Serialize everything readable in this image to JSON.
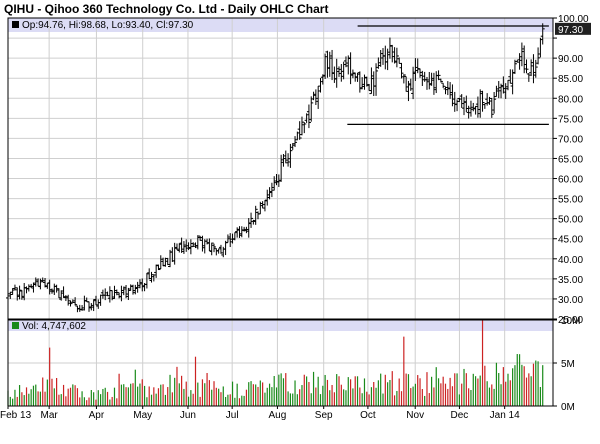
{
  "chart_data": {
    "type": "ohlc",
    "title": "QIHU - Qihoo 360 Technology Co. Ltd - Daily OHLC Chart",
    "legend": {
      "price_text": "Op:94.76, Hi:98.68, Lo:93.40, Cl:97.30",
      "volume_text": "Vol: 4,747,602"
    },
    "last_price_label": "97.30",
    "price_axis": {
      "ylim": [
        25,
        100
      ],
      "ticks": [
        "100.00",
        "95.00",
        "90.00",
        "85.00",
        "80.00",
        "75.00",
        "70.00",
        "65.00",
        "60.00",
        "55.00",
        "50.00",
        "45.00",
        "40.00",
        "35.00",
        "30.00",
        "25.00"
      ],
      "tick_values": [
        100,
        95,
        90,
        85,
        80,
        75,
        70,
        65,
        60,
        55,
        50,
        45,
        40,
        35,
        30,
        25
      ]
    },
    "volume_axis": {
      "ylim": [
        0,
        10
      ],
      "ticks": [
        "10M",
        "5M",
        "0M"
      ],
      "tick_values": [
        10,
        5,
        0
      ]
    },
    "x_axis": {
      "labels": [
        "Feb 13",
        "Mar",
        "Apr",
        "May",
        "Jun",
        "Jul",
        "Aug",
        "Sep",
        "Oct",
        "Nov",
        "Dec",
        "Jan 14"
      ],
      "positions": [
        0,
        4,
        8.6,
        13.1,
        17.5,
        21.8,
        26.2,
        30.7,
        35.0,
        39.6,
        43.9,
        48.3
      ],
      "range": [
        0,
        53
      ]
    },
    "price_path": [
      [
        0,
        30.5
      ],
      [
        2,
        32.5
      ],
      [
        3,
        34
      ],
      [
        4,
        33
      ],
      [
        5,
        31
      ],
      [
        6,
        29
      ],
      [
        7,
        28.5
      ],
      [
        8,
        29
      ],
      [
        9,
        30
      ],
      [
        10,
        31
      ],
      [
        11,
        32
      ],
      [
        12,
        33
      ],
      [
        13,
        34
      ],
      [
        14,
        36
      ],
      [
        15,
        39
      ],
      [
        16,
        41
      ],
      [
        17,
        43
      ],
      [
        18,
        44
      ],
      [
        19,
        44
      ],
      [
        20,
        43
      ],
      [
        21,
        43
      ],
      [
        22,
        46
      ],
      [
        23,
        48
      ],
      [
        24,
        51
      ],
      [
        25,
        55
      ],
      [
        26,
        59
      ],
      [
        27,
        65
      ],
      [
        28,
        71
      ],
      [
        29,
        74
      ],
      [
        30,
        82
      ],
      [
        31,
        90
      ],
      [
        32,
        86
      ],
      [
        33,
        88
      ],
      [
        34,
        85
      ],
      [
        35,
        82
      ],
      [
        36,
        87
      ],
      [
        37,
        93
      ],
      [
        38,
        87
      ],
      [
        39,
        84
      ],
      [
        40,
        88
      ],
      [
        41,
        84
      ],
      [
        42,
        86
      ],
      [
        43,
        82
      ],
      [
        44,
        78
      ],
      [
        45,
        75
      ],
      [
        46,
        80
      ],
      [
        47,
        78
      ],
      [
        48,
        82
      ],
      [
        49,
        85
      ],
      [
        50,
        90
      ],
      [
        51,
        86
      ],
      [
        52,
        97.3
      ]
    ],
    "volume_path": [
      [
        0,
        1.5
      ],
      [
        4,
        2.5
      ],
      [
        8,
        1.2
      ],
      [
        13,
        2.0
      ],
      [
        17,
        2.5
      ],
      [
        21,
        1.8
      ],
      [
        26,
        2.5
      ],
      [
        30,
        2.8
      ],
      [
        35,
        2.6
      ],
      [
        39,
        2.5
      ],
      [
        43,
        2.6
      ],
      [
        48,
        3.5
      ],
      [
        52,
        4.7
      ]
    ],
    "trendlines": [
      {
        "x0": 34.0,
        "y0": 98.0,
        "x1": 52.6,
        "y1": 98.0
      },
      {
        "x0": 33.0,
        "y0": 73.5,
        "x1": 52.6,
        "y1": 73.5
      }
    ],
    "colors": {
      "up": "#1a8a1a",
      "down": "#cc2222",
      "bar": "#000000",
      "grid": "#cfcfcf",
      "band": "#dcdcf5",
      "label_box": "#202020"
    },
    "grid": true
  }
}
